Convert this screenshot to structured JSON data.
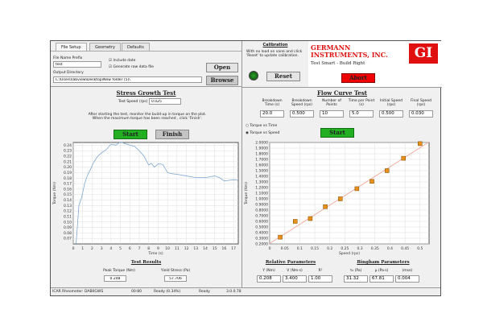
{
  "tabs": [
    "File Setup",
    "Geometry",
    "Defaults"
  ],
  "file_setup": {
    "prefix_label": "File Name Prefix",
    "prefix_value": "test",
    "include_date": "Include date",
    "generate_raw": "Generate raw data file",
    "output_label": "Output Directory",
    "output_value": "C:\\Users\\labview\\Desktop\\New folder (5)\\",
    "open": "Open",
    "browse": "Browse"
  },
  "calibration": {
    "title": "Calibration",
    "text": "With no load on vane and click 'Reset' to update calibration.",
    "reset": "Reset",
    "led_color": "#1a7a1a"
  },
  "logo": {
    "company": "GERMANN INSTRUMENTS, INC.",
    "tagline": "Test Smart - Build Right",
    "mark": "GI",
    "abort": "Abort"
  },
  "stress": {
    "title": "Stress Growth Test",
    "speed_label": "Test Speed (rps)",
    "speed_value": "0.025",
    "instructions": "After starting the test, monitor the build-up in torque on the plot. When the maximum torque has been reached , click 'Finish'.",
    "start": "Start",
    "finish": "Finish",
    "results_title": "Test Results",
    "peak_label": "Peak Torque (Nm)",
    "peak_value": "0.248",
    "yield_label": "Yield Stress (Pa)",
    "yield_value": "57.706"
  },
  "flow": {
    "title": "Flow Curve Test",
    "params": [
      {
        "label": "Breakdown Time (s)",
        "value": "20.0"
      },
      {
        "label": "Breakdown Speed (rps)",
        "value": "0.500"
      },
      {
        "label": "Number of Points",
        "value": "10"
      },
      {
        "label": "Time per Point (s)",
        "value": "5.0"
      },
      {
        "label": "Initial Speed (rps)",
        "value": "0.500"
      },
      {
        "label": "Final Speed (rps)",
        "value": "0.030"
      }
    ],
    "radio_time": "Torque vs Time",
    "radio_speed": "Torque vs Speed",
    "start": "Start",
    "relative_title": "Relative Parameters",
    "relative": [
      {
        "label": "Y (Nm)",
        "value": "0.208"
      },
      {
        "label": "V (Nm·s)",
        "value": "3.400"
      },
      {
        "label": "R²",
        "value": "1.00"
      }
    ],
    "bingham_title": "Bingham Parameters",
    "bingham": [
      {
        "label": "τ₀ (Pa)",
        "value": "31.32"
      },
      {
        "label": "μ (Pa·s)",
        "value": "67.81"
      },
      {
        "label": "(mse)",
        "value": "0.004"
      }
    ]
  },
  "status": {
    "device": "ICAR Rheometer: DAB0GWS",
    "time": "00:80",
    "ready_pct": "Ready (0.34%)",
    "state": "Ready",
    "version": "3.0.0.78"
  },
  "chart_data": [
    {
      "type": "line",
      "xlabel": "Time (s)",
      "ylabel": "Torque (Nm)",
      "xlim": [
        0,
        17.5
      ],
      "ylim": [
        0.06,
        0.245
      ],
      "grid": true,
      "xticks": [
        0,
        1,
        2,
        3,
        4,
        5,
        6,
        7,
        8,
        9,
        10,
        11,
        12,
        13,
        14,
        15,
        16,
        17
      ],
      "yticks": [
        0.07,
        0.08,
        0.09,
        0.1,
        0.11,
        0.12,
        0.13,
        0.14,
        0.15,
        0.16,
        0.17,
        0.18,
        0.19,
        0.2,
        0.21,
        0.22,
        0.23,
        0.24
      ],
      "x": [
        0.3,
        0.6,
        0.9,
        1.2,
        1.5,
        1.8,
        2.2,
        2.6,
        3,
        3.5,
        4,
        4.5,
        5,
        5.5,
        6,
        6.5,
        7,
        7.5,
        8,
        8.3,
        8.6,
        9,
        9.5,
        10,
        10.5,
        11,
        12,
        13,
        14,
        15,
        15.5,
        16,
        16.5,
        17,
        17.5
      ],
      "y": [
        0.06,
        0.13,
        0.145,
        0.17,
        0.185,
        0.195,
        0.21,
        0.22,
        0.226,
        0.232,
        0.242,
        0.24,
        0.246,
        0.243,
        0.24,
        0.238,
        0.23,
        0.22,
        0.204,
        0.207,
        0.2,
        0.206,
        0.205,
        0.19,
        0.188,
        0.187,
        0.184,
        0.181,
        0.181,
        0.184,
        0.181,
        0.175,
        0.176,
        0.177,
        0.176
      ],
      "color": "#7fa7d0"
    },
    {
      "type": "scatter",
      "xlabel": "Speed (rps)",
      "ylabel": "Torque (Nm)",
      "xlim": [
        0,
        0.53
      ],
      "ylim": [
        0.2,
        2.0
      ],
      "grid": true,
      "xticks": [
        0,
        0.05,
        0.1,
        0.15,
        0.2,
        0.25,
        0.3,
        0.35,
        0.4,
        0.45,
        0.5
      ],
      "yticks": [
        0.2,
        0.3,
        0.4,
        0.5,
        0.6,
        0.7,
        0.8,
        0.9,
        1.0,
        1.1,
        1.2,
        1.3,
        1.4,
        1.5,
        1.6,
        1.7,
        1.8,
        1.9,
        2.0
      ],
      "x": [
        0.035,
        0.085,
        0.135,
        0.185,
        0.235,
        0.29,
        0.34,
        0.39,
        0.445,
        0.5
      ],
      "y": [
        0.32,
        0.6,
        0.65,
        0.86,
        1.0,
        1.18,
        1.31,
        1.5,
        1.72,
        1.98
      ],
      "fit": {
        "intercept": 0.208,
        "slope": 3.4
      },
      "marker_color": "#e8901a",
      "fit_color": "#f0a090"
    }
  ]
}
